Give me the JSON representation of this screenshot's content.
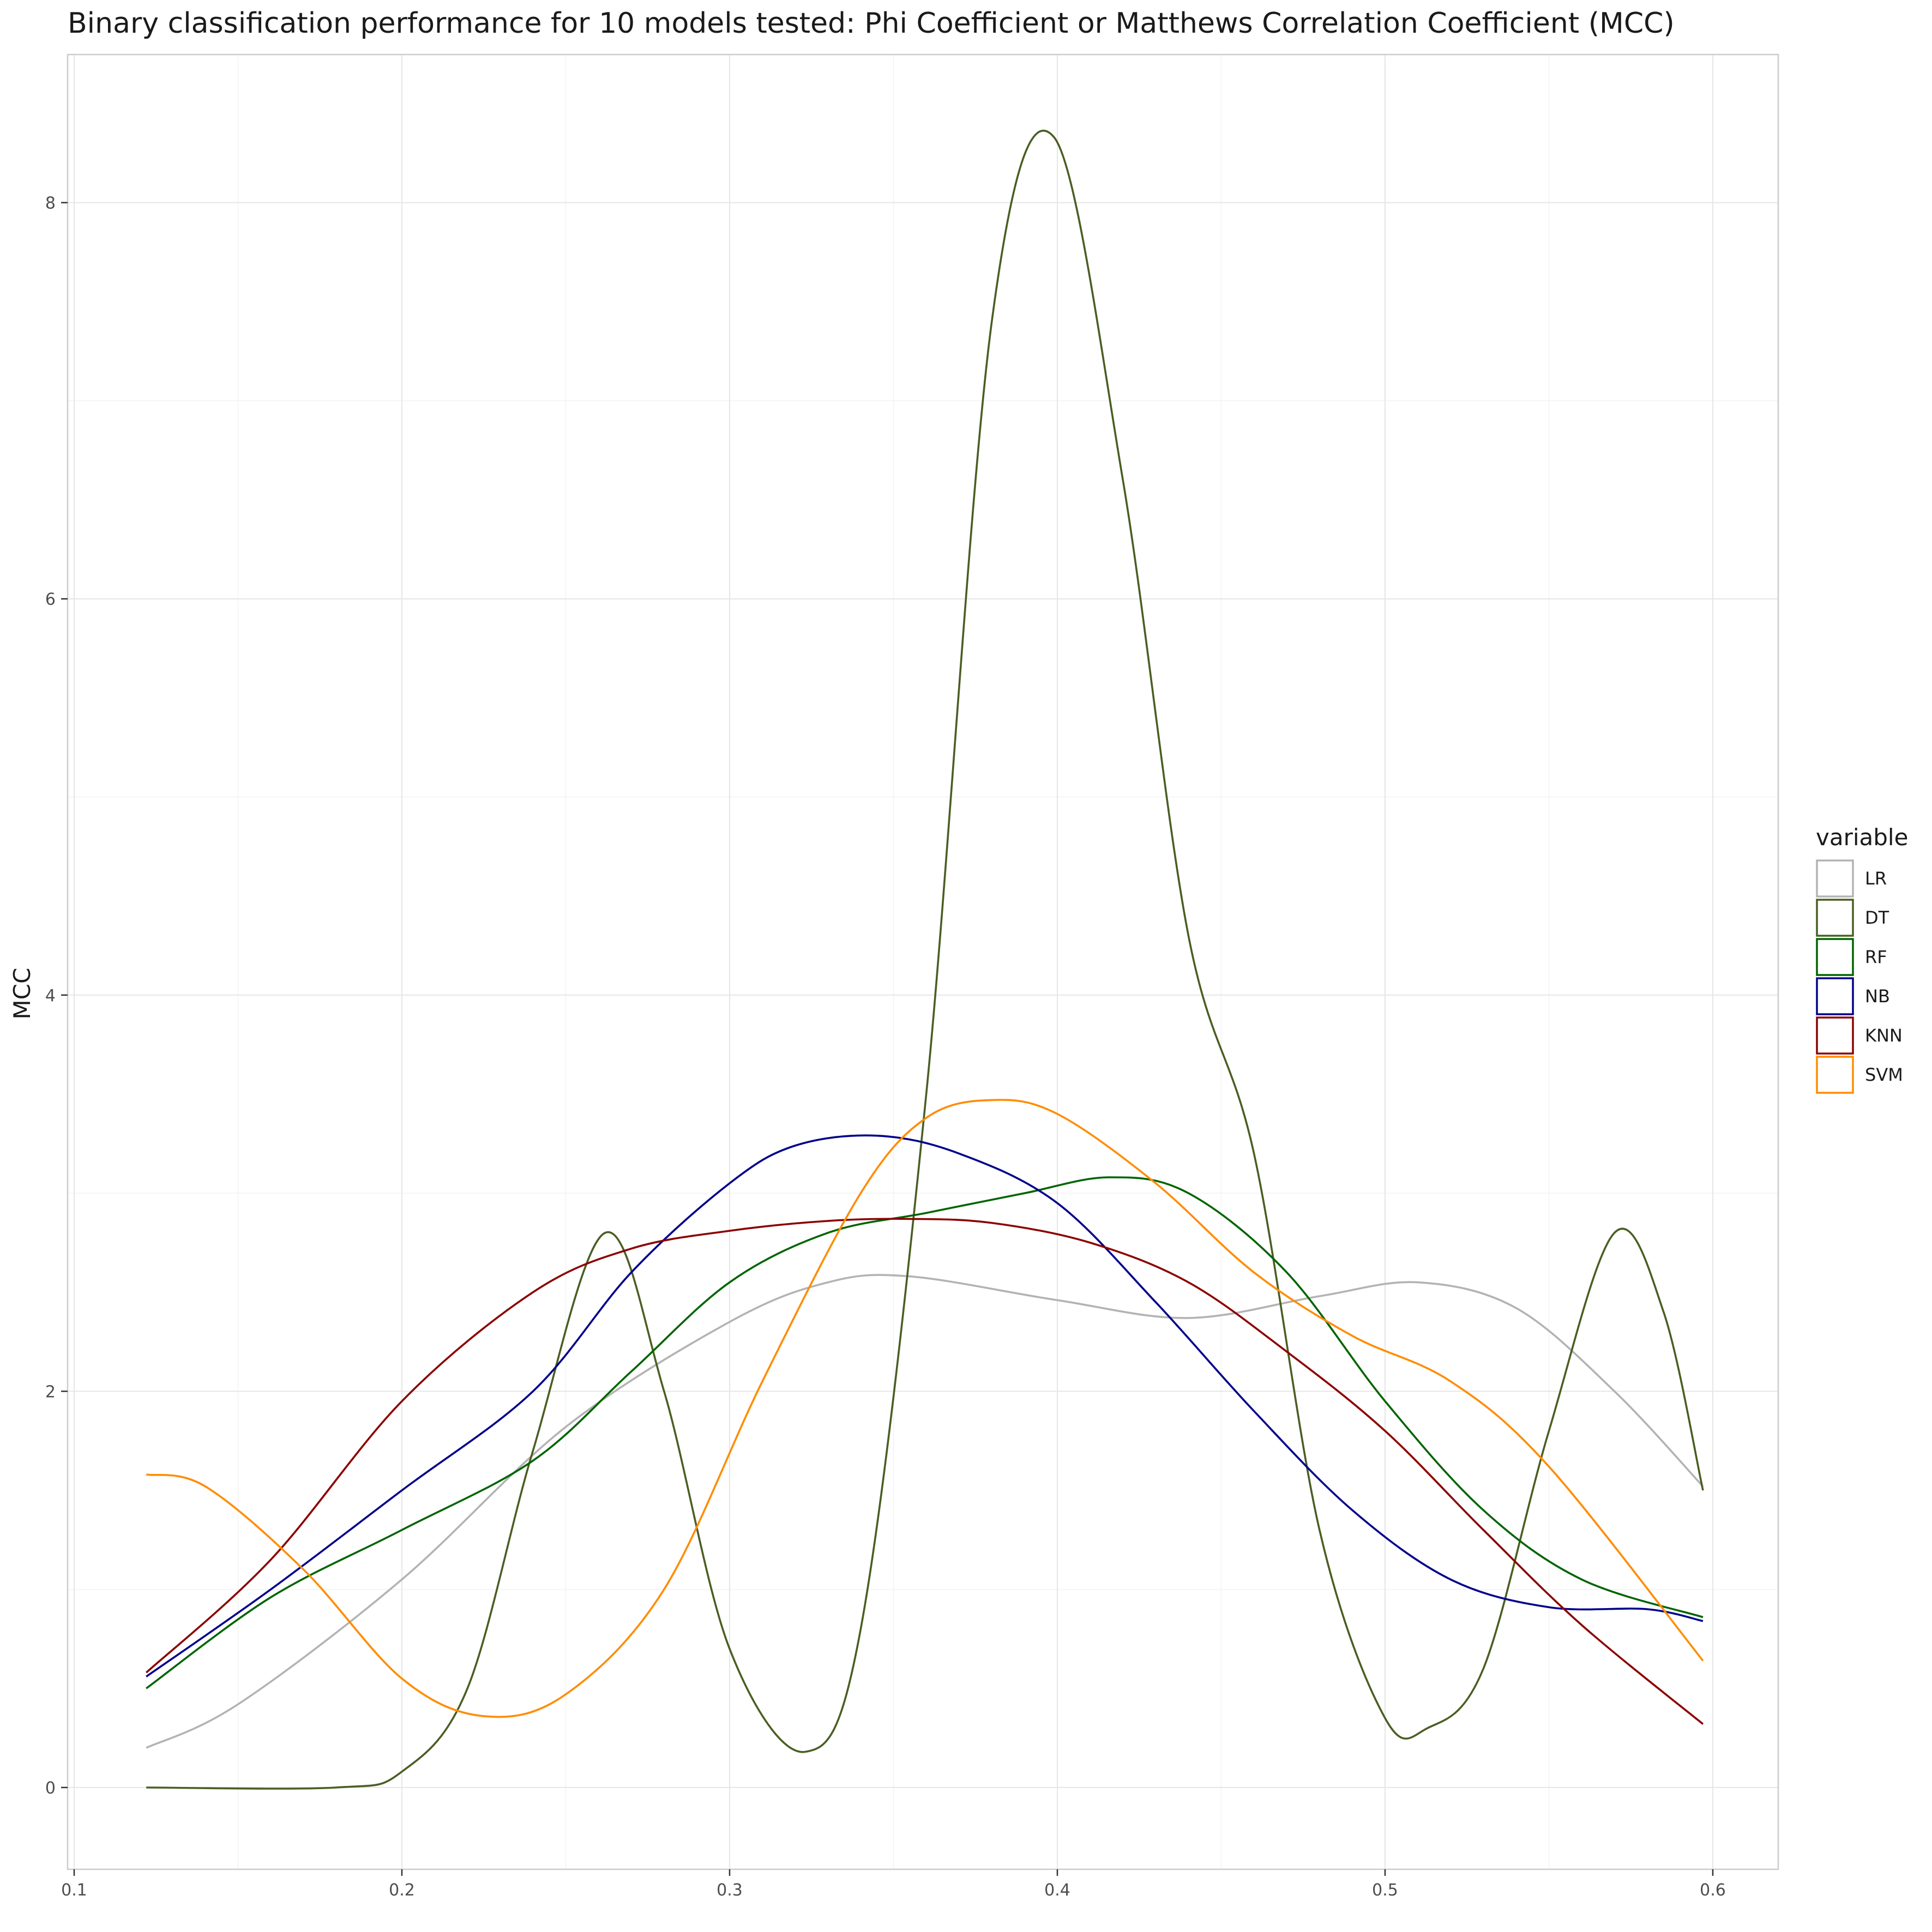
{
  "chart_data": {
    "type": "line",
    "title": "Binary classification performance for 10 models tested: Phi Coefficient or Matthews Correlation Coefficient (MCC)",
    "xlabel": "",
    "ylabel": "MCC",
    "xlim": [
      0.1,
      0.6
    ],
    "ylim": [
      0,
      8
    ],
    "x_ticks": [
      "0.1",
      "0.2",
      "0.3",
      "0.4",
      "0.5",
      "0.6"
    ],
    "y_ticks": [
      "0",
      "2",
      "4",
      "6",
      "8"
    ],
    "grid": true,
    "legend": {
      "title": "variable",
      "position": "right"
    },
    "series": [
      {
        "name": "LR",
        "color": "#b3b3b3",
        "points": [
          [
            0.122,
            0.2
          ],
          [
            0.15,
            0.42
          ],
          [
            0.2,
            1.05
          ],
          [
            0.25,
            1.82
          ],
          [
            0.3,
            2.35
          ],
          [
            0.33,
            2.55
          ],
          [
            0.355,
            2.58
          ],
          [
            0.4,
            2.46
          ],
          [
            0.44,
            2.37
          ],
          [
            0.48,
            2.48
          ],
          [
            0.51,
            2.55
          ],
          [
            0.54,
            2.42
          ],
          [
            0.57,
            2.0
          ],
          [
            0.597,
            1.52
          ]
        ]
      },
      {
        "name": "DT",
        "color": "#4a5e23",
        "points": [
          [
            0.122,
            0.0
          ],
          [
            0.18,
            0.0
          ],
          [
            0.2,
            0.08
          ],
          [
            0.22,
            0.5
          ],
          [
            0.24,
            1.7
          ],
          [
            0.262,
            2.8
          ],
          [
            0.28,
            2.0
          ],
          [
            0.3,
            0.7
          ],
          [
            0.323,
            0.18
          ],
          [
            0.34,
            0.8
          ],
          [
            0.36,
            3.5
          ],
          [
            0.38,
            7.4
          ],
          [
            0.399,
            8.33
          ],
          [
            0.42,
            6.6
          ],
          [
            0.44,
            4.3
          ],
          [
            0.46,
            3.2
          ],
          [
            0.48,
            1.3
          ],
          [
            0.5,
            0.35
          ],
          [
            0.513,
            0.3
          ],
          [
            0.53,
            0.6
          ],
          [
            0.55,
            1.8
          ],
          [
            0.57,
            2.8
          ],
          [
            0.585,
            2.4
          ],
          [
            0.597,
            1.5
          ]
        ]
      },
      {
        "name": "RF",
        "color": "#006400",
        "points": [
          [
            0.122,
            0.5
          ],
          [
            0.16,
            0.96
          ],
          [
            0.2,
            1.3
          ],
          [
            0.24,
            1.65
          ],
          [
            0.27,
            2.1
          ],
          [
            0.3,
            2.55
          ],
          [
            0.33,
            2.8
          ],
          [
            0.36,
            2.9
          ],
          [
            0.39,
            3.0
          ],
          [
            0.416,
            3.08
          ],
          [
            0.44,
            3.0
          ],
          [
            0.47,
            2.6
          ],
          [
            0.5,
            1.95
          ],
          [
            0.53,
            1.4
          ],
          [
            0.56,
            1.05
          ],
          [
            0.597,
            0.86
          ]
        ]
      },
      {
        "name": "NB",
        "color": "#00008b",
        "points": [
          [
            0.122,
            0.56
          ],
          [
            0.16,
            1.0
          ],
          [
            0.2,
            1.5
          ],
          [
            0.24,
            2.0
          ],
          [
            0.27,
            2.6
          ],
          [
            0.3,
            3.05
          ],
          [
            0.32,
            3.24
          ],
          [
            0.345,
            3.29
          ],
          [
            0.37,
            3.2
          ],
          [
            0.4,
            2.95
          ],
          [
            0.43,
            2.45
          ],
          [
            0.46,
            1.9
          ],
          [
            0.49,
            1.4
          ],
          [
            0.52,
            1.05
          ],
          [
            0.55,
            0.91
          ],
          [
            0.58,
            0.9
          ],
          [
            0.597,
            0.84
          ]
        ]
      },
      {
        "name": "KNN",
        "color": "#8b0000",
        "points": [
          [
            0.122,
            0.58
          ],
          [
            0.16,
            1.15
          ],
          [
            0.2,
            1.95
          ],
          [
            0.24,
            2.5
          ],
          [
            0.27,
            2.72
          ],
          [
            0.3,
            2.81
          ],
          [
            0.33,
            2.86
          ],
          [
            0.355,
            2.87
          ],
          [
            0.38,
            2.85
          ],
          [
            0.41,
            2.75
          ],
          [
            0.44,
            2.55
          ],
          [
            0.47,
            2.2
          ],
          [
            0.5,
            1.8
          ],
          [
            0.53,
            1.3
          ],
          [
            0.56,
            0.82
          ],
          [
            0.597,
            0.32
          ]
        ]
      },
      {
        "name": "SVM",
        "color": "#ff8c00",
        "points": [
          [
            0.122,
            1.58
          ],
          [
            0.14,
            1.52
          ],
          [
            0.17,
            1.1
          ],
          [
            0.2,
            0.55
          ],
          [
            0.225,
            0.36
          ],
          [
            0.25,
            0.47
          ],
          [
            0.28,
            1.0
          ],
          [
            0.31,
            2.05
          ],
          [
            0.34,
            3.0
          ],
          [
            0.36,
            3.38
          ],
          [
            0.38,
            3.47
          ],
          [
            0.4,
            3.4
          ],
          [
            0.43,
            3.05
          ],
          [
            0.46,
            2.6
          ],
          [
            0.49,
            2.28
          ],
          [
            0.52,
            2.05
          ],
          [
            0.55,
            1.62
          ],
          [
            0.597,
            0.64
          ]
        ]
      }
    ]
  }
}
